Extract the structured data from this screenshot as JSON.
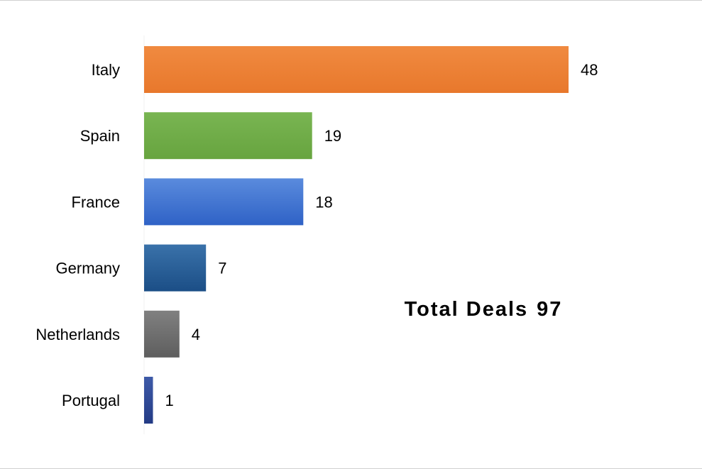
{
  "chart_data": {
    "type": "bar",
    "orientation": "horizontal",
    "categories": [
      "Italy",
      "Spain",
      "France",
      "Germany",
      "Netherlands",
      "Portugal"
    ],
    "values": [
      48,
      19,
      18,
      7,
      4,
      1
    ],
    "colors": [
      "#ED7D31",
      "#70AD47",
      "#3C6FD0",
      "#24588F",
      "#6E6E6E",
      "#2A4490"
    ],
    "title": "",
    "xlabel": "",
    "ylabel": "",
    "xlim": [
      0,
      48
    ],
    "grid": false,
    "legend": "none",
    "data_labels": true
  },
  "annotation": {
    "prefix": "Total Deals",
    "value": "97"
  }
}
